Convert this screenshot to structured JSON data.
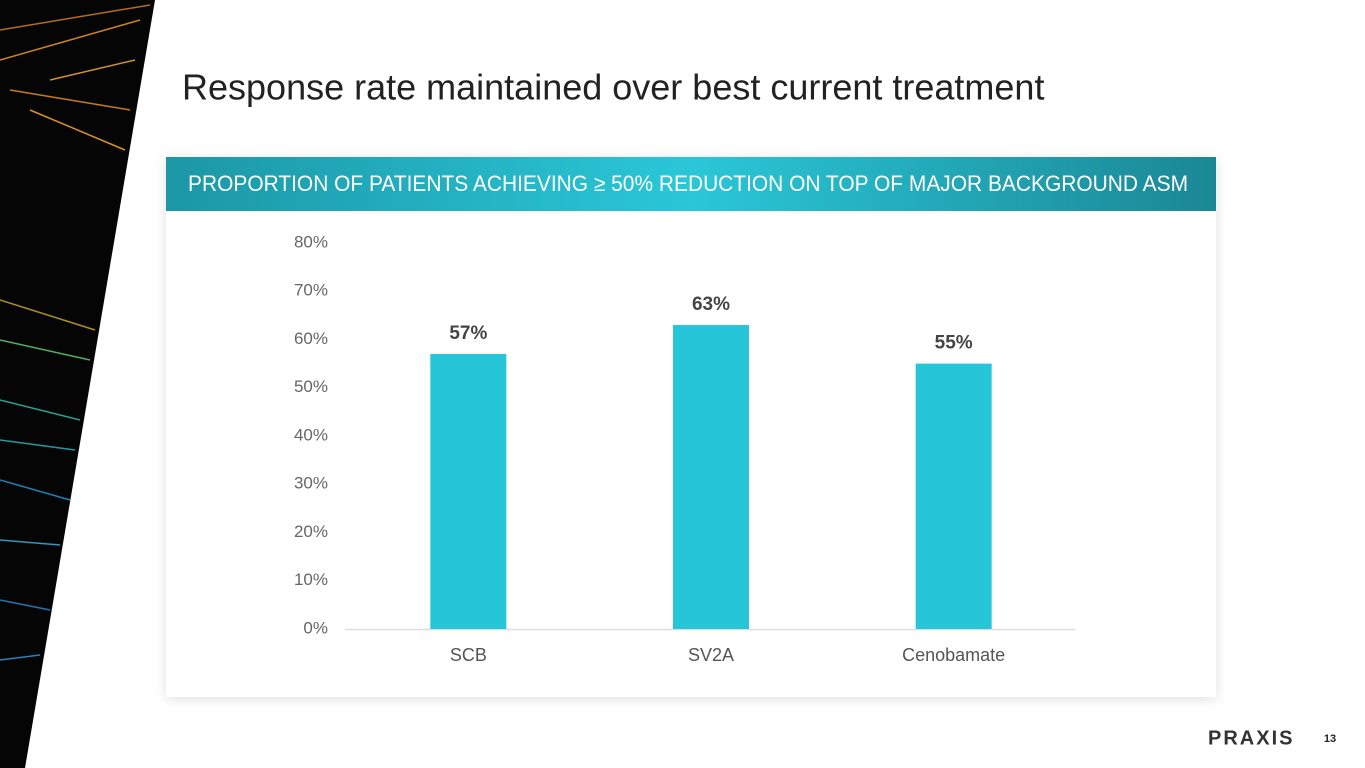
{
  "title": "Response rate maintained over best current treatment",
  "chart_data": {
    "type": "bar",
    "title": "PROPORTION OF PATIENTS ACHIEVING ≥ 50% REDUCTION ON TOP OF MAJOR BACKGROUND ASM",
    "categories": [
      "SCB",
      "SV2A",
      "Cenobamate"
    ],
    "values": [
      57,
      63,
      55
    ],
    "value_labels": [
      "57%",
      "63%",
      "55%"
    ],
    "color": "#26c6d8",
    "ylim": [
      0,
      80
    ],
    "yticks": [
      {
        "value": 0,
        "label": "0%"
      },
      {
        "value": 10,
        "label": "10%"
      },
      {
        "value": 20,
        "label": "20%"
      },
      {
        "value": 30,
        "label": "30%"
      },
      {
        "value": 40,
        "label": "40%"
      },
      {
        "value": 50,
        "label": "50%"
      },
      {
        "value": 60,
        "label": "60%"
      },
      {
        "value": 70,
        "label": "70%"
      },
      {
        "value": 80,
        "label": "80%"
      }
    ],
    "grid": false
  },
  "logo": "PRAXIS",
  "page_number": "13"
}
